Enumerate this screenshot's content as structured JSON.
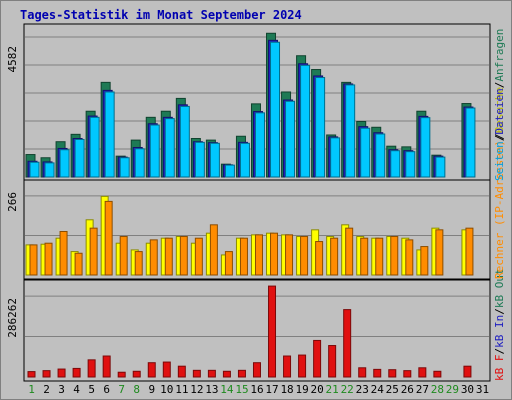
{
  "chart_data": {
    "type": "bar",
    "title": "Tages-Statistik im Monat September 2024",
    "categories": [
      "1",
      "2",
      "3",
      "4",
      "5",
      "6",
      "7",
      "8",
      "9",
      "10",
      "11",
      "12",
      "13",
      "14",
      "15",
      "16",
      "17",
      "18",
      "19",
      "20",
      "21",
      "22",
      "23",
      "24",
      "25",
      "26",
      "27",
      "28",
      "29",
      "30",
      "31"
    ],
    "weekend_days": [
      "1",
      "7",
      "8",
      "14",
      "15",
      "21",
      "22",
      "28",
      "29"
    ],
    "panels": [
      {
        "name": "top",
        "ymax_label": "4582",
        "ymax": 4582,
        "series": [
          {
            "name": "Anfragen",
            "color": "#1e7a55",
            "values": [
              700,
              600,
              1100,
              1330,
              2050,
              2950,
              650,
              1150,
              1860,
              2050,
              2450,
              1200,
              1150,
              400,
              1270,
              2280,
              4480,
              2650,
              3780,
              3350,
              1310,
              2950,
              1730,
              1550,
              960,
              940,
              2050,
              680,
              0,
              2290,
              0
            ]
          },
          {
            "name": "Dateien",
            "color": "#2020c0",
            "values": [
              490,
              470,
              890,
              1200,
              1900,
              2700,
              620,
              920,
              1660,
              1860,
              2250,
              1100,
              1070,
              380,
              1080,
              2040,
              4260,
              2400,
              3530,
              3150,
              1250,
              2900,
              1570,
              1380,
              850,
              820,
              1890,
              650,
              0,
              2180,
              0
            ]
          },
          {
            "name": "Seiten",
            "color": "#00c8ff",
            "values": [
              460,
              440,
              850,
              1170,
              1860,
              2650,
              600,
              880,
              1620,
              1820,
              2200,
              1080,
              1050,
              370,
              1050,
              2000,
              4200,
              2360,
              3480,
              3100,
              1220,
              2870,
              1520,
              1340,
              820,
              790,
              1850,
              620,
              0,
              2150,
              0
            ]
          }
        ]
      },
      {
        "name": "middle",
        "ymax_label": "266",
        "ymax": 266,
        "series": [
          {
            "name": "Besuche",
            "color": "#ffff00",
            "values": [
              90,
              92,
              110,
              70,
              165,
              235,
              95,
              75,
              95,
              110,
              115,
              95,
              125,
              60,
              110,
              120,
              125,
              120,
              115,
              135,
              115,
              150,
              115,
              110,
              115,
              110,
              75,
              140,
              0,
              135,
              0
            ]
          },
          {
            "name": "Rechner (IP-Adressen)",
            "color": "#ff8c00",
            "values": [
              90,
              95,
              130,
              65,
              140,
              220,
              115,
              70,
              105,
              110,
              115,
              110,
              150,
              70,
              110,
              120,
              125,
              120,
              115,
              100,
              110,
              140,
              110,
              110,
              115,
              105,
              85,
              135,
              0,
              140,
              0
            ]
          }
        ]
      },
      {
        "name": "bottom",
        "ymax_label": "286262",
        "ymax": 286262,
        "series": [
          {
            "name": "kB F",
            "color": "#e01010",
            "values": [
              17000,
              20000,
              25000,
              27000,
              54000,
              66000,
              15000,
              18000,
              45000,
              47000,
              34000,
              21000,
              21000,
              18000,
              21000,
              45000,
              286000,
              66000,
              69000,
              115000,
              99000,
              212000,
              29000,
              24000,
              23000,
              20000,
              29000,
              18000,
              0,
              34000,
              0
            ]
          }
        ]
      }
    ],
    "right_legend_bottom": [
      "kB F",
      "/",
      "kB In",
      "/",
      "kB Out"
    ],
    "right_legend_middle": [
      "Rechner (IP-Adressen)",
      "/",
      "Besuche"
    ],
    "right_legend_top": [
      "Seiten",
      "/",
      "Dateien",
      "/",
      "Anfragen"
    ]
  }
}
